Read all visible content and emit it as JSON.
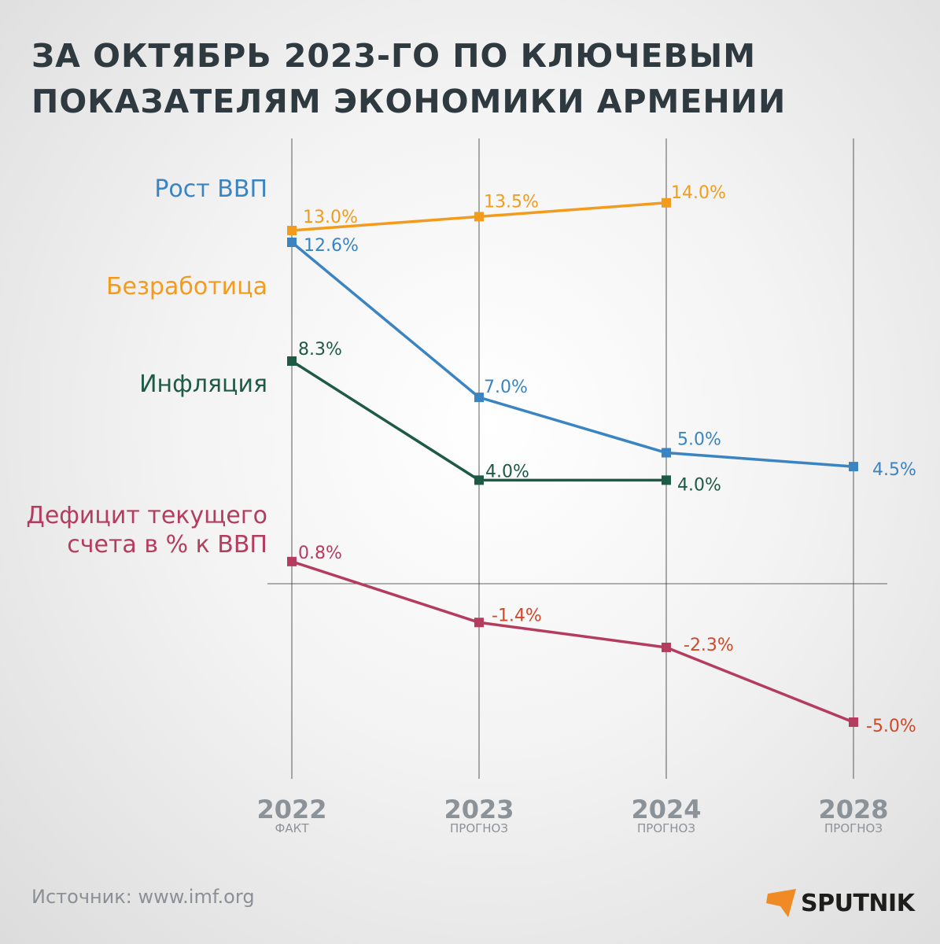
{
  "title": "ЗА ОКТЯБРЬ 2023-ГО ПО КЛЮЧЕВЫМ ПОКАЗАТЕЛЯМ ЭКОНОМИКИ АРМЕНИИ",
  "source": "Источник: www.imf.org",
  "logo_text": "SPUTNIK",
  "colors": {
    "gdp": "#3a84c1",
    "unemployment": "#f39b1c",
    "inflation": "#1f5a45",
    "deficit": "#b43c5f",
    "negative_label": "#d14828",
    "axis_text": "#8b9298",
    "grid": "#333333",
    "logo_mark": "#f08a24"
  },
  "chart_data": {
    "type": "line",
    "title": "ЗА ОКТЯБРЬ 2023-ГО ПО КЛЮЧЕВЫМ ПОКАЗАТЕЛЯМ ЭКОНОМИКИ АРМЕНИИ",
    "categories": [
      "2022",
      "2023",
      "2024",
      "2028"
    ],
    "category_notes": [
      "ФАКТ",
      "ПРОГНОЗ",
      "ПРОГНОЗ",
      "ПРОГНОЗ"
    ],
    "y_unit": "%",
    "grid": "vertical lines at categories, horizontal zero line",
    "series": [
      {
        "key": "unemployment",
        "name": "Безработица",
        "values": [
          13.0,
          13.5,
          14.0,
          null
        ],
        "labels": [
          "13.0%",
          "13.5%",
          "14.0%",
          null
        ]
      },
      {
        "key": "gdp",
        "name": "Рост ВВП",
        "values": [
          12.6,
          7.0,
          5.0,
          4.5
        ],
        "labels": [
          "12.6%",
          "7.0%",
          "5.0%",
          "4.5%"
        ]
      },
      {
        "key": "inflation",
        "name": "Инфляция",
        "values": [
          8.3,
          4.0,
          4.0,
          null
        ],
        "labels": [
          "8.3%",
          "4.0%",
          "4.0%",
          null
        ]
      },
      {
        "key": "deficit",
        "name": "Дефицит текущего счета в % к ВВП",
        "values": [
          0.8,
          -1.4,
          -2.3,
          -5.0
        ],
        "labels": [
          "0.8%",
          "-1.4%",
          "-2.3%",
          "-5.0%"
        ]
      }
    ]
  },
  "legend": [
    {
      "key": "gdp",
      "lines": [
        "Рост ВВП"
      ]
    },
    {
      "key": "unemployment",
      "lines": [
        "Безработица"
      ]
    },
    {
      "key": "inflation",
      "lines": [
        "Инфляция"
      ]
    },
    {
      "key": "deficit",
      "lines": [
        "Дефицит текущего",
        "счета в % к ВВП"
      ]
    }
  ]
}
